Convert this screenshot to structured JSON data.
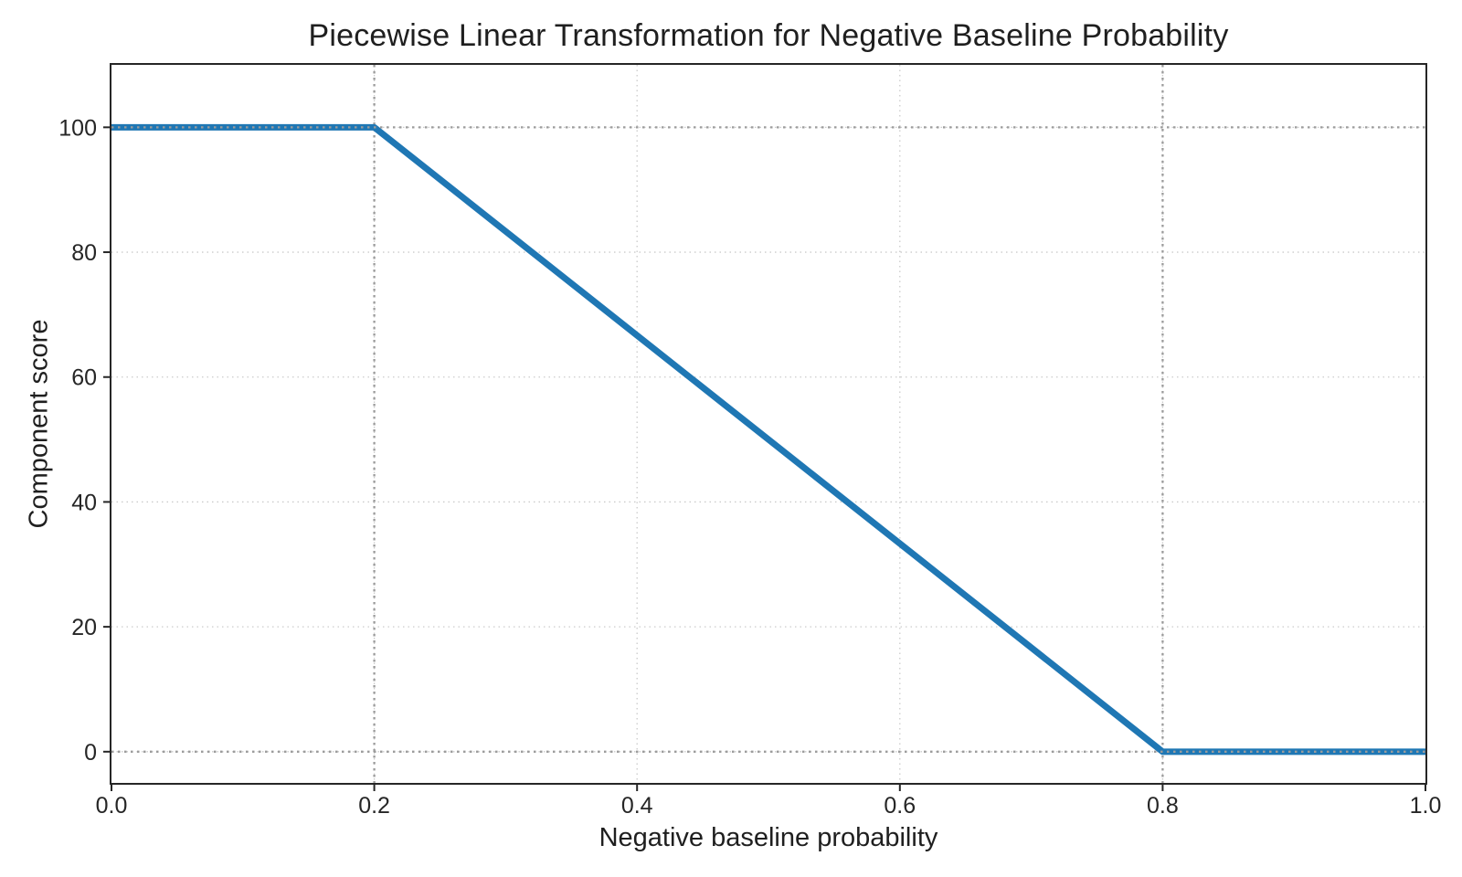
{
  "chart_data": {
    "type": "line",
    "title": "Piecewise Linear Transformation for Negative Baseline Probability",
    "xlabel": "Negative baseline probability",
    "ylabel": "Component score",
    "series": [
      {
        "name": "component-score-curve",
        "x": [
          0.0,
          0.2,
          0.8,
          1.0
        ],
        "y": [
          100,
          100,
          0,
          0
        ],
        "color": "#1f77b4",
        "line_width": 7
      }
    ],
    "xlim": [
      0.0,
      1.0
    ],
    "ylim": [
      -5,
      110
    ],
    "x_ticks": [
      0.0,
      0.2,
      0.4,
      0.6,
      0.8,
      1.0
    ],
    "x_tick_labels": [
      "0.0",
      "0.2",
      "0.4",
      "0.6",
      "0.8",
      "1.0"
    ],
    "y_ticks": [
      0,
      20,
      40,
      60,
      80,
      100
    ],
    "y_tick_labels": [
      "0",
      "20",
      "40",
      "60",
      "80",
      "100"
    ],
    "grid": true,
    "grid_color": "#cbcbcb",
    "reference_lines": {
      "vertical_x": [
        0.2,
        0.8
      ],
      "horizontal_y": [
        0,
        100
      ],
      "color": "#9c9c9c",
      "style": "dotted"
    },
    "spine_color": "#262626",
    "tick_label_color": "#262626",
    "legend": "none",
    "background_color": "#ffffff"
  }
}
